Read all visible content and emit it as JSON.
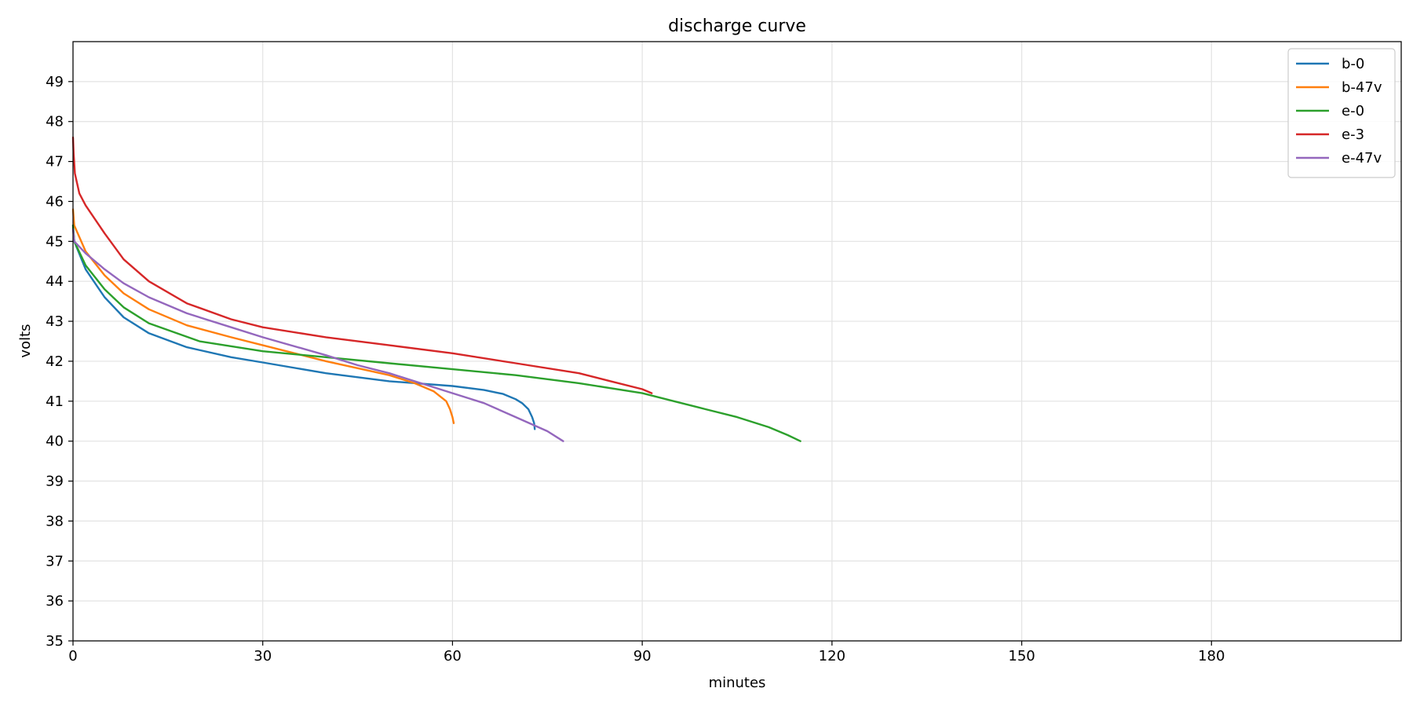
{
  "chart_data": {
    "type": "line",
    "title": "discharge curve",
    "xlabel": "minutes",
    "ylabel": "volts",
    "xlim": [
      0,
      210
    ],
    "ylim": [
      35,
      50
    ],
    "xticks": [
      0,
      30,
      60,
      90,
      120,
      150,
      180
    ],
    "yticks": [
      35,
      36,
      37,
      38,
      39,
      40,
      41,
      42,
      43,
      44,
      45,
      46,
      47,
      48,
      49
    ],
    "grid": true,
    "legend_position": "top-right",
    "series": [
      {
        "name": "b-0",
        "color": "#1f77b4",
        "x": [
          0,
          0.2,
          2,
          5,
          8,
          12,
          18,
          25,
          30,
          40,
          50,
          60,
          65,
          68,
          70,
          71,
          72,
          72.6,
          72.9,
          73
        ],
        "y": [
          45.4,
          45.0,
          44.3,
          43.6,
          43.1,
          42.7,
          42.35,
          42.1,
          41.97,
          41.7,
          41.5,
          41.38,
          41.28,
          41.18,
          41.05,
          40.95,
          40.8,
          40.6,
          40.45,
          40.3
        ]
      },
      {
        "name": "b-47v",
        "color": "#ff7f0e",
        "x": [
          0,
          0.2,
          2,
          5,
          8,
          12,
          18,
          25,
          30,
          40,
          50,
          54,
          57,
          59,
          59.6,
          60,
          60.2
        ],
        "y": [
          45.8,
          45.4,
          44.75,
          44.15,
          43.7,
          43.3,
          42.9,
          42.6,
          42.4,
          42.0,
          41.65,
          41.45,
          41.25,
          41.0,
          40.8,
          40.6,
          40.45
        ]
      },
      {
        "name": "e-0",
        "color": "#2ca02c",
        "x": [
          0,
          0.2,
          2,
          5,
          8,
          12,
          20,
          30,
          40,
          50,
          60,
          70,
          80,
          90,
          95,
          100,
          105,
          110,
          113,
          115
        ],
        "y": [
          45.4,
          45.0,
          44.4,
          43.8,
          43.35,
          42.95,
          42.5,
          42.25,
          42.1,
          41.95,
          41.8,
          41.65,
          41.45,
          41.2,
          41.0,
          40.8,
          40.6,
          40.35,
          40.15,
          40.0
        ]
      },
      {
        "name": "e-3",
        "color": "#d62728",
        "x": [
          0,
          0.1,
          0.3,
          1,
          2,
          5,
          8,
          12,
          18,
          25,
          30,
          40,
          50,
          60,
          70,
          80,
          85,
          90,
          91.5
        ],
        "y": [
          47.6,
          47.2,
          46.7,
          46.2,
          45.9,
          45.2,
          44.55,
          44.0,
          43.45,
          43.05,
          42.85,
          42.6,
          42.4,
          42.2,
          41.95,
          41.7,
          41.5,
          41.3,
          41.2
        ]
      },
      {
        "name": "e-47v",
        "color": "#9467bd",
        "x": [
          0,
          0.2,
          2,
          5,
          8,
          12,
          18,
          25,
          30,
          40,
          45,
          50,
          55,
          60,
          65,
          70,
          75,
          77.5
        ],
        "y": [
          45.3,
          45.0,
          44.7,
          44.3,
          43.95,
          43.6,
          43.2,
          42.85,
          42.6,
          42.15,
          41.9,
          41.7,
          41.45,
          41.2,
          40.95,
          40.6,
          40.25,
          40.0
        ]
      }
    ]
  }
}
